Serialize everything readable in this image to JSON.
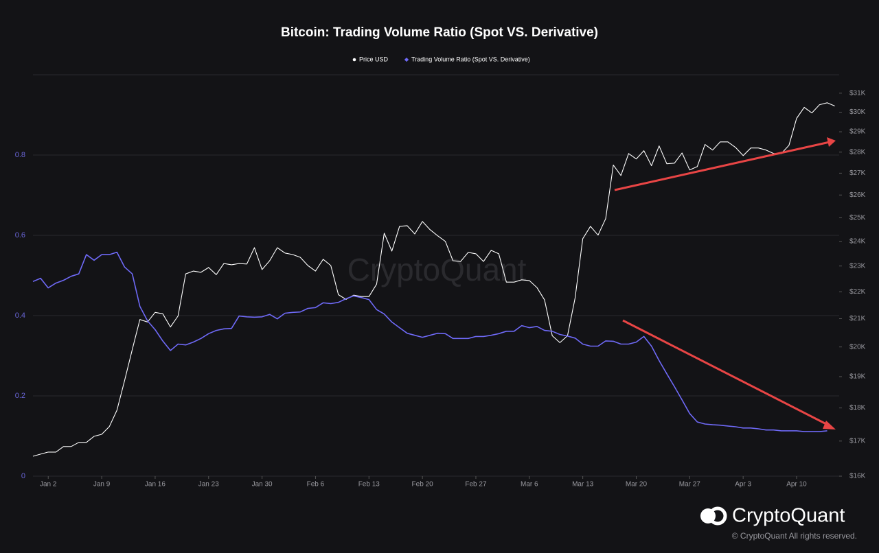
{
  "chart_data": {
    "type": "line",
    "title": "Bitcoin: Trading Volume Ratio (Spot VS. Derivative)",
    "watermark": "CryptoQuant",
    "brand": "CryptoQuant",
    "copyright": "© CryptoQuant All rights reserved.",
    "categories": [
      null,
      null,
      "Jan 2",
      null,
      null,
      null,
      null,
      null,
      null,
      "Jan 9",
      null,
      null,
      null,
      null,
      null,
      null,
      "Jan 16",
      null,
      null,
      null,
      null,
      null,
      null,
      "Jan 23",
      null,
      null,
      null,
      null,
      null,
      null,
      "Jan 30",
      null,
      null,
      null,
      null,
      null,
      null,
      "Feb 6",
      null,
      null,
      null,
      null,
      null,
      null,
      "Feb 13",
      null,
      null,
      null,
      null,
      null,
      null,
      "Feb 20",
      null,
      null,
      null,
      null,
      null,
      null,
      "Feb 27",
      null,
      null,
      null,
      null,
      null,
      null,
      "Mar 6",
      null,
      null,
      null,
      null,
      null,
      null,
      "Mar 13",
      null,
      null,
      null,
      null,
      null,
      null,
      "Mar 20",
      null,
      null,
      null,
      null,
      null,
      null,
      "Mar 27",
      null,
      null,
      null,
      null,
      null,
      null,
      "Apr 3",
      null,
      null,
      null,
      null,
      null,
      null,
      "Apr 10",
      null,
      null,
      null,
      null,
      null
    ],
    "series": [
      {
        "name": "Price USD",
        "color": "#ffffff",
        "axis": "y2",
        "marker": "circle",
        "values": [
          16560,
          16620,
          16680,
          16680,
          16840,
          16840,
          16960,
          16960,
          17140,
          17200,
          17430,
          17930,
          18870,
          19910,
          20970,
          20880,
          21230,
          21180,
          20700,
          21100,
          22690,
          22800,
          22750,
          22940,
          22660,
          23100,
          23050,
          23100,
          23080,
          23740,
          22860,
          23210,
          23740,
          23520,
          23460,
          23350,
          23020,
          22800,
          23270,
          23020,
          21890,
          21710,
          21870,
          21820,
          21820,
          22290,
          24340,
          23600,
          24630,
          24660,
          24310,
          24840,
          24490,
          24230,
          24000,
          23210,
          23180,
          23550,
          23490,
          23180,
          23630,
          23490,
          22370,
          22370,
          22460,
          22430,
          22160,
          21690,
          20390,
          20150,
          20390,
          21770,
          24110,
          24630,
          24260,
          24960,
          27380,
          26890,
          27930,
          27670,
          28070,
          27350,
          28300,
          27440,
          27470,
          27960,
          27150,
          27310,
          28370,
          28100,
          28500,
          28500,
          28230,
          27830,
          28200,
          28200,
          28100,
          27930,
          27930,
          28330,
          29680,
          30250,
          29960,
          30390,
          30490,
          30320
        ]
      },
      {
        "name": "Trading Volume Ratio (Spot VS. Derivative)",
        "color": "#6f6af8",
        "axis": "y",
        "marker": "diamond",
        "values": [
          0.485,
          0.493,
          0.469,
          0.481,
          0.488,
          0.498,
          0.504,
          0.552,
          0.538,
          0.552,
          0.552,
          0.558,
          0.521,
          0.504,
          0.423,
          0.387,
          0.365,
          0.337,
          0.313,
          0.329,
          0.327,
          0.334,
          0.343,
          0.355,
          0.363,
          0.367,
          0.368,
          0.399,
          0.397,
          0.396,
          0.397,
          0.403,
          0.392,
          0.406,
          0.408,
          0.409,
          0.418,
          0.42,
          0.432,
          0.43,
          0.433,
          0.442,
          0.449,
          0.445,
          0.44,
          0.415,
          0.404,
          0.384,
          0.37,
          0.356,
          0.351,
          0.346,
          0.351,
          0.356,
          0.355,
          0.343,
          0.343,
          0.343,
          0.348,
          0.348,
          0.351,
          0.355,
          0.361,
          0.361,
          0.375,
          0.37,
          0.373,
          0.363,
          0.361,
          0.353,
          0.349,
          0.344,
          0.329,
          0.324,
          0.324,
          0.337,
          0.336,
          0.329,
          0.329,
          0.334,
          0.348,
          0.324,
          0.288,
          0.255,
          0.223,
          0.19,
          0.156,
          0.135,
          0.13,
          0.128,
          0.127,
          0.125,
          0.123,
          0.12,
          0.12,
          0.118,
          0.115,
          0.115,
          0.113,
          0.113,
          0.113,
          0.111,
          0.111,
          0.111,
          0.113,
          null
        ]
      }
    ],
    "ylim": [
      0,
      1
    ],
    "yticks": [
      0,
      0.2,
      0.4,
      0.6,
      0.8
    ],
    "y2lim": [
      16000,
      32000
    ],
    "y2log": true,
    "y2ticks": [
      {
        "value": 16000,
        "label": "$16K"
      },
      {
        "value": 17000,
        "label": "$17K"
      },
      {
        "value": 18000,
        "label": "$18K"
      },
      {
        "value": 19000,
        "label": "$19K"
      },
      {
        "value": 20000,
        "label": "$20K"
      },
      {
        "value": 21000,
        "label": "$21K"
      },
      {
        "value": 22000,
        "label": "$22K"
      },
      {
        "value": 23000,
        "label": "$23K"
      },
      {
        "value": 24000,
        "label": "$24K"
      },
      {
        "value": 25000,
        "label": "$25K"
      },
      {
        "value": 26000,
        "label": "$26K"
      },
      {
        "value": 27000,
        "label": "$27K"
      },
      {
        "value": 28000,
        "label": "$28K"
      },
      {
        "value": 29000,
        "label": "$29K"
      },
      {
        "value": 30000,
        "label": "$30K"
      },
      {
        "value": 31000,
        "label": "$31K"
      }
    ],
    "grid": true,
    "legend": "top"
  }
}
